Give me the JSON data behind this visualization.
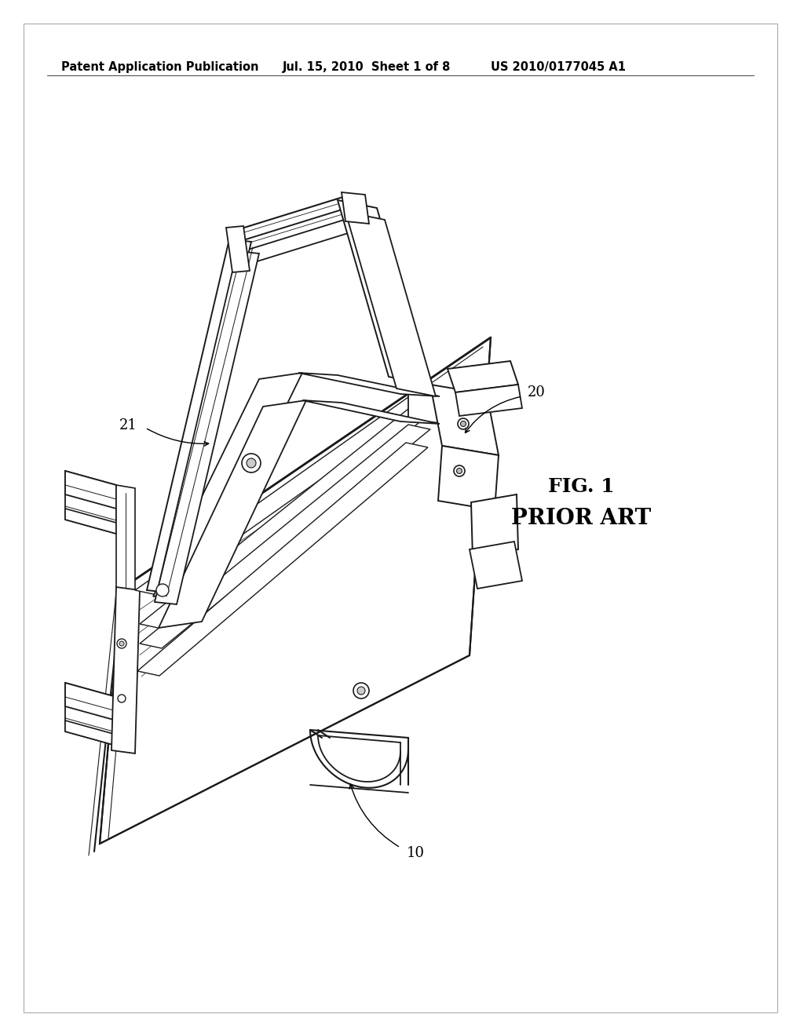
{
  "background_color": "#ffffff",
  "header_text": "Patent Application Publication",
  "header_date": "Jul. 15, 2010  Sheet 1 of 8",
  "header_patent": "US 2010/0177045 A1",
  "fig_label": "FIG. 1",
  "fig_sublabel": "PRIOR ART",
  "ref_10": "10",
  "ref_20": "20",
  "ref_21": "21",
  "line_color": "#1a1a1a",
  "text_color": "#000000",
  "header_fontsize": 10.5,
  "ref_fontsize": 13,
  "fig_label_fontsize": 18
}
